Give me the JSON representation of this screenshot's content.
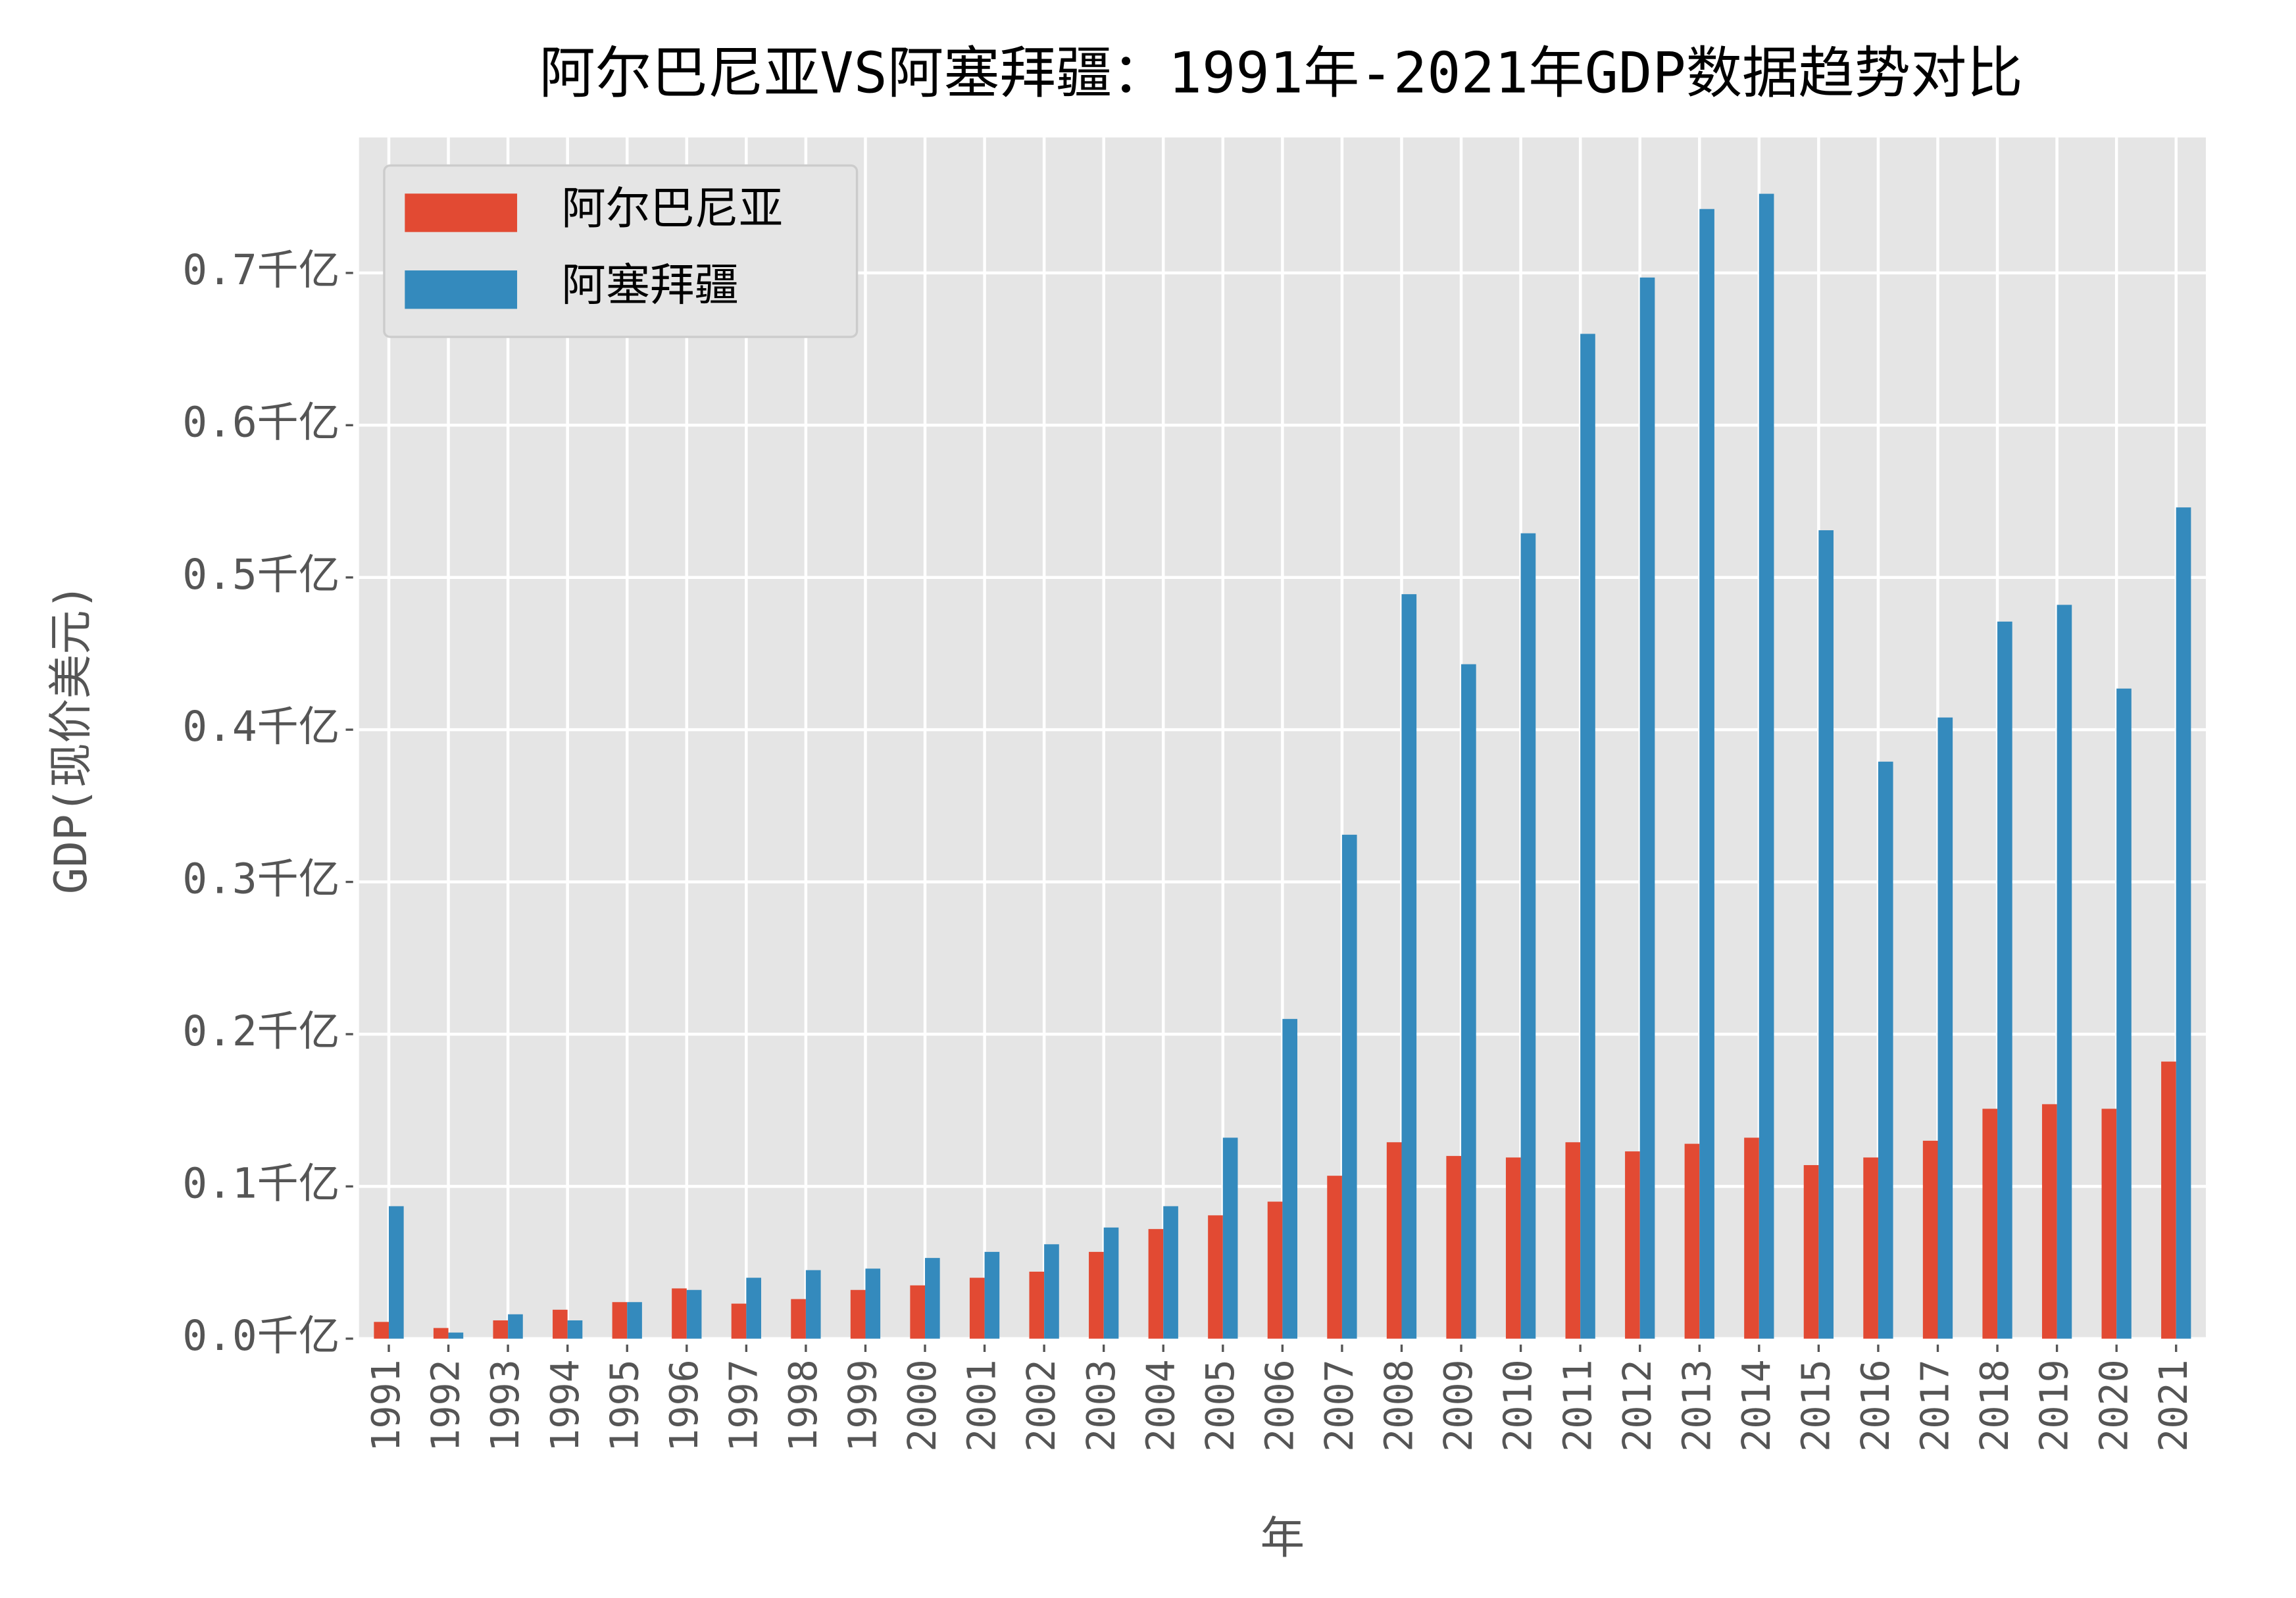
{
  "chart_data": {
    "type": "bar",
    "title": "阿尔巴尼亚VS阿塞拜疆：1991年-2021年GDP数据趋势对比",
    "x_label": "年",
    "y_label": "GDP(现价美元)",
    "categories": [
      "1991",
      "1992",
      "1993",
      "1994",
      "1995",
      "1996",
      "1997",
      "1998",
      "1999",
      "2000",
      "2001",
      "2002",
      "2003",
      "2004",
      "2005",
      "2006",
      "2007",
      "2008",
      "2009",
      "2010",
      "2011",
      "2012",
      "2013",
      "2014",
      "2015",
      "2016",
      "2017",
      "2018",
      "2019",
      "2020",
      "2021"
    ],
    "series": [
      {
        "name": "阿尔巴尼亚",
        "color": "#e24a33",
        "values": [
          0.011,
          0.007,
          0.012,
          0.019,
          0.024,
          0.033,
          0.023,
          0.026,
          0.032,
          0.035,
          0.04,
          0.044,
          0.057,
          0.072,
          0.081,
          0.09,
          0.107,
          0.129,
          0.12,
          0.119,
          0.129,
          0.123,
          0.128,
          0.132,
          0.114,
          0.119,
          0.13,
          0.151,
          0.154,
          0.151,
          0.182
        ]
      },
      {
        "name": "阿塞拜疆",
        "color": "#348abd",
        "values": [
          0.087,
          0.004,
          0.016,
          0.012,
          0.024,
          0.032,
          0.04,
          0.045,
          0.046,
          0.053,
          0.057,
          0.062,
          0.073,
          0.087,
          0.132,
          0.21,
          0.331,
          0.489,
          0.443,
          0.529,
          0.66,
          0.697,
          0.742,
          0.752,
          0.531,
          0.379,
          0.408,
          0.471,
          0.482,
          0.427,
          0.546
        ]
      }
    ],
    "ylim": [
      0,
      0.789
    ],
    "yticks": [
      {
        "value": 0,
        "label": "0.0千亿"
      },
      {
        "value": 0.1,
        "label": "0.1千亿"
      },
      {
        "value": 0.2,
        "label": "0.2千亿"
      },
      {
        "value": 0.3,
        "label": "0.3千亿"
      },
      {
        "value": 0.4,
        "label": "0.4千亿"
      },
      {
        "value": 0.5,
        "label": "0.5千亿"
      },
      {
        "value": 0.6,
        "label": "0.6千亿"
      },
      {
        "value": 0.7,
        "label": "0.7千亿"
      }
    ],
    "grid": true,
    "legend": "upper left"
  }
}
